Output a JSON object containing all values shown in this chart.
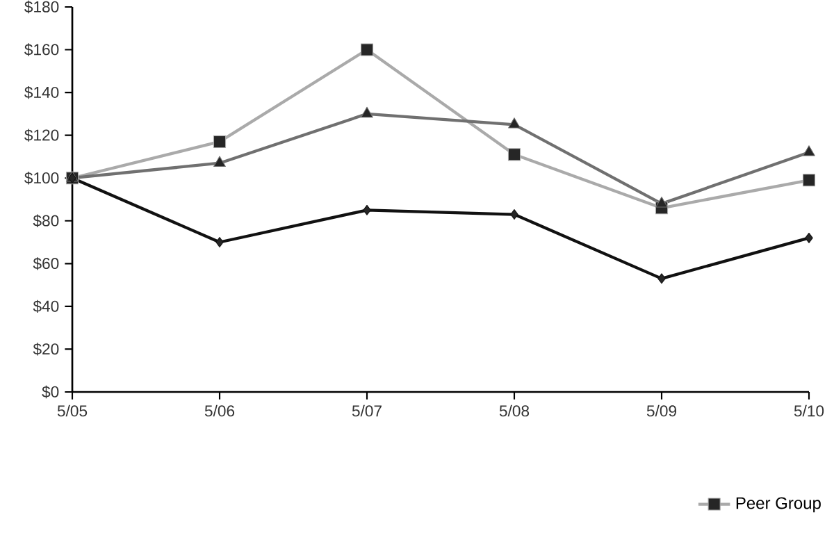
{
  "chart_data": {
    "type": "line",
    "categories": [
      "5/05",
      "5/06",
      "5/07",
      "5/08",
      "5/09",
      "5/10"
    ],
    "series": [
      {
        "color": "#111111",
        "marker": "diamond",
        "values": [
          100,
          70,
          85,
          83,
          53,
          72
        ]
      },
      {
        "color": "#707070",
        "marker": "triangle",
        "values": [
          100,
          107,
          130,
          125,
          88,
          112
        ]
      },
      {
        "name": "Peer Group",
        "color": "#aaaaaa",
        "marker": "square",
        "values": [
          100,
          117,
          160,
          111,
          86,
          99
        ]
      }
    ],
    "ylim": [
      0,
      180
    ],
    "yticks": [
      {
        "value": 0,
        "label": "$0"
      },
      {
        "value": 20,
        "label": "$20"
      },
      {
        "value": 40,
        "label": "$40"
      },
      {
        "value": 60,
        "label": "$60"
      },
      {
        "value": 80,
        "label": "$80"
      },
      {
        "value": 100,
        "label": "$100"
      },
      {
        "value": 120,
        "label": "$120"
      },
      {
        "value": 140,
        "label": "$140"
      },
      {
        "value": 160,
        "label": "$160"
      },
      {
        "value": 180,
        "label": "$180"
      }
    ],
    "grid": false,
    "legend": "bottom",
    "line_style": "solid"
  }
}
